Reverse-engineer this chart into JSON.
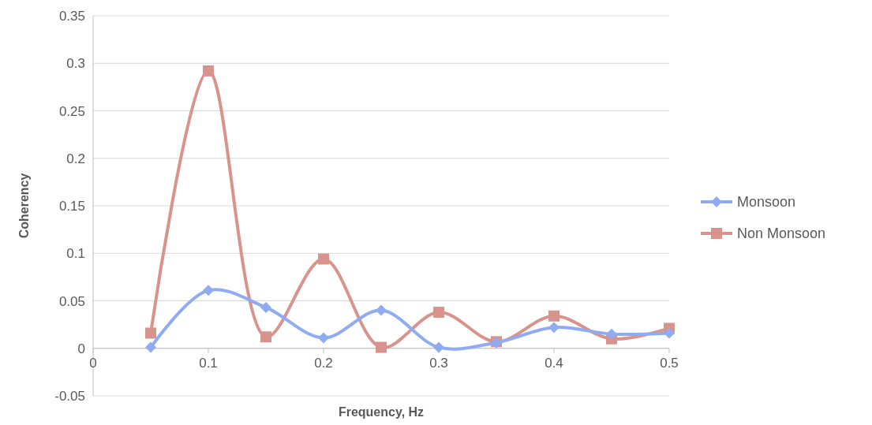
{
  "chart_data": {
    "type": "line",
    "xlabel": "Frequency, Hz",
    "ylabel": "Coherency",
    "xlim": [
      0,
      0.5
    ],
    "xticks": [
      0,
      0.1,
      0.2,
      0.3,
      0.4,
      0.5
    ],
    "ylim": [
      -0.05,
      0.35
    ],
    "yticks": [
      -0.05,
      0,
      0.05,
      0.1,
      0.15,
      0.2,
      0.25,
      0.3,
      0.35
    ],
    "grid": "y",
    "legend": "right",
    "series": [
      {
        "name": "Monsoon",
        "color": "#8fabf2",
        "marker": "diamond",
        "x": [
          0.05,
          0.1,
          0.15,
          0.2,
          0.25,
          0.3,
          0.35,
          0.4,
          0.45,
          0.5
        ],
        "values": [
          0.001,
          0.061,
          0.043,
          0.011,
          0.04,
          0.001,
          0.006,
          0.022,
          0.015,
          0.016
        ]
      },
      {
        "name": "Non Monsoon",
        "color": "#d9938d",
        "marker": "square",
        "x": [
          0.05,
          0.1,
          0.15,
          0.2,
          0.25,
          0.3,
          0.35,
          0.4,
          0.45,
          0.5
        ],
        "values": [
          0.016,
          0.292,
          0.012,
          0.094,
          0.001,
          0.038,
          0.007,
          0.034,
          0.01,
          0.021
        ]
      }
    ]
  }
}
